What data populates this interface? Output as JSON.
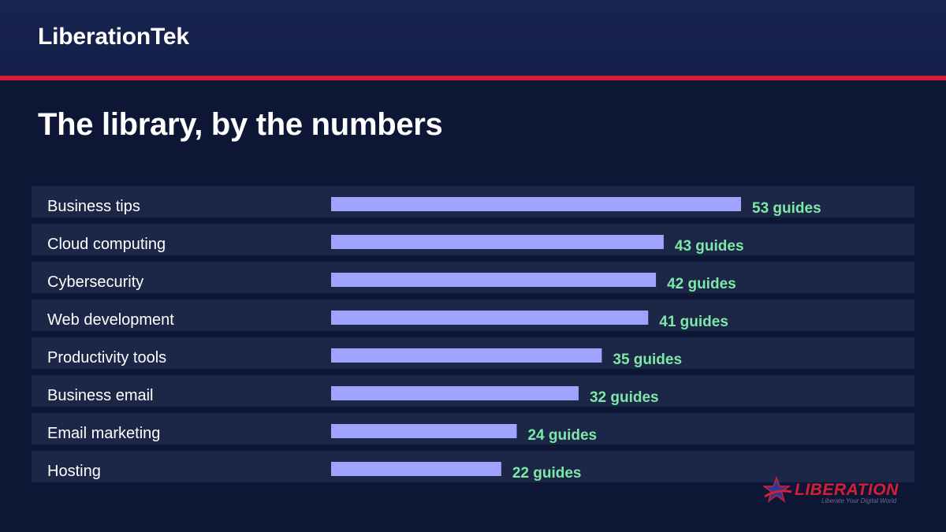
{
  "header": {
    "brand": "LiberationTek"
  },
  "page": {
    "title": "The library, by the numbers"
  },
  "colors": {
    "background": "#0d1634",
    "header": "#16234d",
    "accent_line": "#d51f36",
    "row_bg": "#1c2646",
    "bar": "#9ea3ff",
    "value_text": "#7ee8a8"
  },
  "logo": {
    "word": "LIBERATION",
    "tagline": "Liberate Your Digital World",
    "icon": "star-swoosh-icon"
  },
  "chart_data": {
    "type": "bar",
    "orientation": "horizontal",
    "categories": [
      "Business tips",
      "Cloud computing",
      "Cybersecurity",
      "Web development",
      "Productivity tools",
      "Business email",
      "Email marketing",
      "Hosting"
    ],
    "values": [
      53,
      43,
      42,
      41,
      35,
      32,
      24,
      22
    ],
    "value_labels": [
      "53 guides",
      "43 guides",
      "42 guides",
      "41 guides",
      "35 guides",
      "32 guides",
      "24 guides",
      "22 guides"
    ],
    "title": "",
    "xlabel": "",
    "ylabel": "",
    "xlim": [
      0,
      53
    ],
    "grid": false,
    "legend": false
  }
}
